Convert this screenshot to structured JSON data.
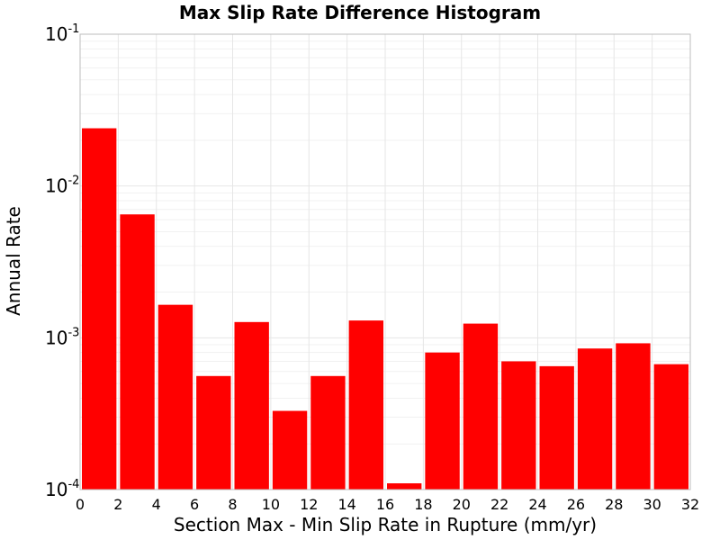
{
  "chart_data": {
    "type": "bar",
    "title": "Max Slip Rate Difference Histogram",
    "xlabel": "Section Max - Min Slip Rate in Rupture (mm/yr)",
    "ylabel": "Annual Rate",
    "xlim": [
      0,
      32
    ],
    "ylim": [
      0.0001,
      0.1
    ],
    "yscale": "log",
    "grid": true,
    "bar_color": "#ff0000",
    "bin_width": 2,
    "bins": [
      {
        "x0": 0,
        "x1": 2,
        "value": 0.024
      },
      {
        "x0": 2,
        "x1": 4,
        "value": 0.0065
      },
      {
        "x0": 4,
        "x1": 6,
        "value": 0.00165
      },
      {
        "x0": 6,
        "x1": 8,
        "value": 0.00056
      },
      {
        "x0": 8,
        "x1": 10,
        "value": 0.00127
      },
      {
        "x0": 10,
        "x1": 12,
        "value": 0.00033
      },
      {
        "x0": 12,
        "x1": 14,
        "value": 0.00056
      },
      {
        "x0": 14,
        "x1": 16,
        "value": 0.0013
      },
      {
        "x0": 16,
        "x1": 18,
        "value": 0.00011
      },
      {
        "x0": 18,
        "x1": 20,
        "value": 0.0008
      },
      {
        "x0": 20,
        "x1": 22,
        "value": 0.00124
      },
      {
        "x0": 22,
        "x1": 24,
        "value": 0.0007
      },
      {
        "x0": 24,
        "x1": 26,
        "value": 0.00065
      },
      {
        "x0": 26,
        "x1": 28,
        "value": 0.00085
      },
      {
        "x0": 28,
        "x1": 30,
        "value": 0.00092
      },
      {
        "x0": 30,
        "x1": 32,
        "value": 0.00067
      }
    ],
    "xticks": [
      "0",
      "2",
      "4",
      "6",
      "8",
      "10",
      "12",
      "14",
      "16",
      "18",
      "20",
      "22",
      "24",
      "26",
      "28",
      "30",
      "32"
    ],
    "yticks": [
      {
        "value": 0.1,
        "base": "10",
        "exp": "-1"
      },
      {
        "value": 0.01,
        "base": "10",
        "exp": "-2"
      },
      {
        "value": 0.001,
        "base": "10",
        "exp": "-3"
      },
      {
        "value": 0.0001,
        "base": "10",
        "exp": "-4"
      }
    ]
  }
}
